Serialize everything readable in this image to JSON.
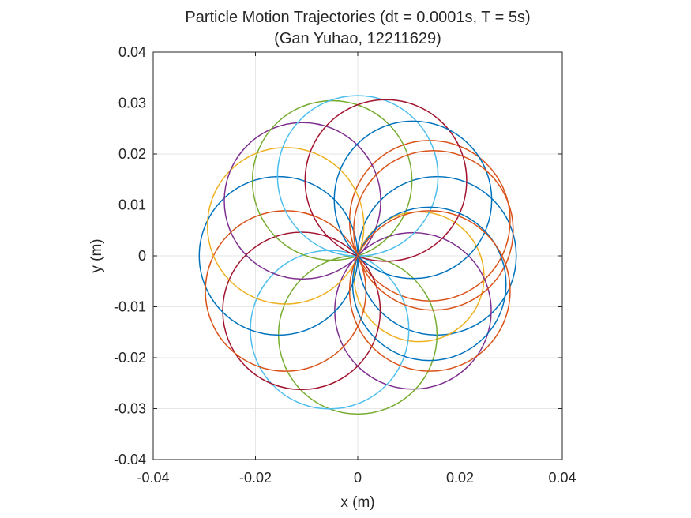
{
  "chart_data": {
    "type": "line",
    "title": "Particle Motion Trajectories (dt = 0.0001s, T = 5s)",
    "subtitle": "(Gan Yuhao, 12211629)",
    "xlabel": "x (m)",
    "ylabel": "y (m)",
    "xlim": [
      -0.04,
      0.04
    ],
    "ylim": [
      -0.04,
      0.04
    ],
    "xticks": [
      -0.04,
      -0.02,
      0,
      0.02,
      0.04
    ],
    "yticks": [
      -0.04,
      -0.03,
      -0.02,
      -0.01,
      0,
      0.01,
      0.02,
      0.03,
      0.04
    ],
    "xtick_labels": [
      "-0.04",
      "-0.02",
      "0",
      "0.02",
      "0.04"
    ],
    "ytick_labels": [
      "-0.04",
      "-0.03",
      "-0.02",
      "-0.01",
      "0",
      "0.01",
      "0.02",
      "0.03",
      "0.04"
    ],
    "grid": true,
    "box": "on",
    "trajectory_shape": "circle passing through origin",
    "series": [
      {
        "center": [
          0.0155,
          0.0
        ],
        "radius": 0.0155,
        "color": "#0072BD"
      },
      {
        "center": [
          0.0141,
          0.0069
        ],
        "radius": 0.0157,
        "color": "#D95319"
      },
      {
        "center": [
          0.012,
          -0.0041
        ],
        "radius": 0.0127,
        "color": "#EDB120"
      },
      {
        "center": [
          0.0108,
          -0.0108
        ],
        "radius": 0.0153,
        "color": "#7E2F8E"
      },
      {
        "center": [
          0.0,
          -0.0155
        ],
        "radius": 0.0155,
        "color": "#77AC30"
      },
      {
        "center": [
          -0.0055,
          -0.0145
        ],
        "radius": 0.0155,
        "color": "#4DBEEE"
      },
      {
        "center": [
          -0.011,
          -0.0108
        ],
        "radius": 0.0154,
        "color": "#A2142F"
      },
      {
        "center": [
          -0.0155,
          0.0
        ],
        "radius": 0.0155,
        "color": "#0072BD"
      },
      {
        "center": [
          -0.0141,
          -0.0069
        ],
        "radius": 0.0157,
        "color": "#D95319"
      },
      {
        "center": [
          -0.0141,
          0.0059
        ],
        "radius": 0.0153,
        "color": "#EDB120"
      },
      {
        "center": [
          -0.0108,
          0.0108
        ],
        "radius": 0.0153,
        "color": "#7E2F8E"
      },
      {
        "center": [
          -0.005,
          0.0148
        ],
        "radius": 0.0156,
        "color": "#77AC30"
      },
      {
        "center": [
          0.0,
          0.0157
        ],
        "radius": 0.0157,
        "color": "#4DBEEE"
      },
      {
        "center": [
          0.0055,
          0.0148
        ],
        "radius": 0.0158,
        "color": "#A2142F"
      },
      {
        "center": [
          0.0108,
          0.011
        ],
        "radius": 0.0154,
        "color": "#0072BD"
      },
      {
        "center": [
          0.0148,
          0.005
        ],
        "radius": 0.0156,
        "color": "#D95319"
      },
      {
        "center": [
          0.014,
          -0.0055
        ],
        "radius": 0.015,
        "color": "#0072BD"
      },
      {
        "center": [
          0.0141,
          -0.0069
        ],
        "radius": 0.0157,
        "color": "#D95319"
      }
    ]
  }
}
